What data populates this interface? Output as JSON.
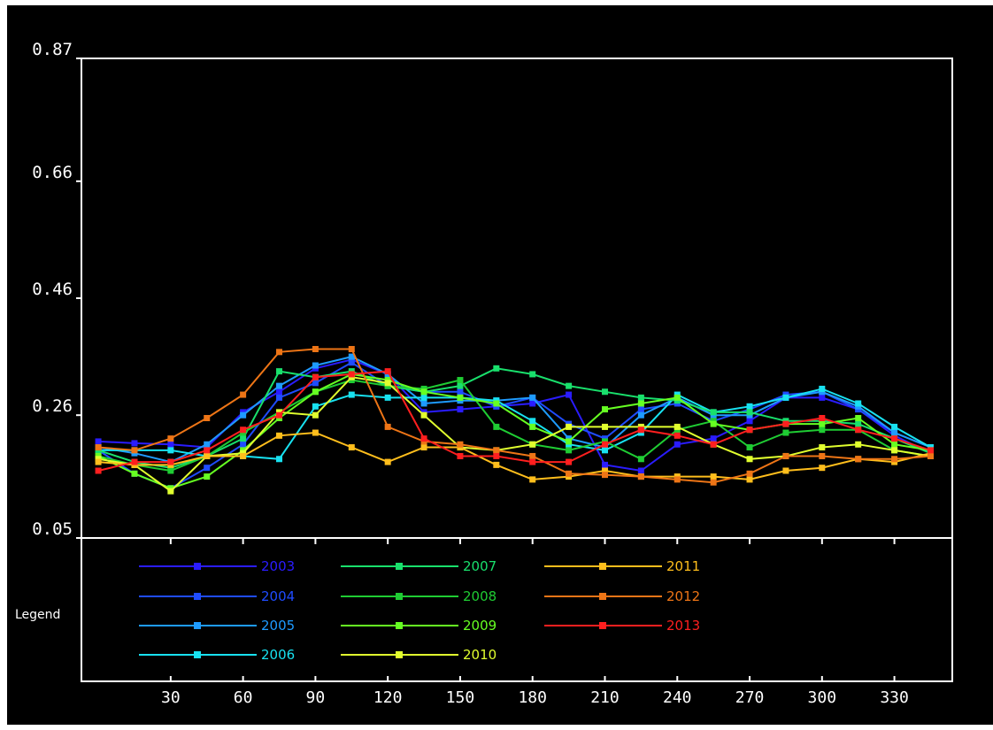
{
  "chart_data": {
    "type": "line",
    "title": "",
    "xlabel": "",
    "ylabel": "",
    "x": [
      0,
      15,
      30,
      45,
      60,
      75,
      90,
      105,
      120,
      135,
      150,
      165,
      180,
      195,
      210,
      225,
      240,
      255,
      270,
      285,
      300,
      315,
      330,
      345
    ],
    "x_ticks": [
      "30",
      "60",
      "90",
      "120",
      "150",
      "180",
      "210",
      "240",
      "270",
      "300",
      "330"
    ],
    "x_tick_values": [
      30,
      60,
      90,
      120,
      150,
      180,
      210,
      240,
      270,
      300,
      330
    ],
    "xlim": [
      -7,
      354
    ],
    "y_ticks": [
      "0.87",
      "0.66",
      "0.46",
      "0.26",
      "0.05"
    ],
    "y_tick_values": [
      0.87,
      0.66,
      0.46,
      0.26,
      0.05
    ],
    "ylim": [
      0.05,
      0.87
    ],
    "legend_title": "Legend",
    "legend_position": "bottom",
    "series": [
      {
        "name": "2003",
        "color": "#2a1cff",
        "values": [
          0.215,
          0.212,
          0.21,
          0.205,
          0.265,
          0.3,
          0.34,
          0.355,
          0.33,
          0.265,
          0.27,
          0.275,
          0.28,
          0.295,
          0.175,
          0.165,
          0.21,
          0.22,
          0.25,
          0.29,
          0.29,
          0.27,
          0.225,
          0.195
        ]
      },
      {
        "name": "2004",
        "color": "#1f4cff",
        "values": [
          0.2,
          0.16,
          0.135,
          0.17,
          0.21,
          0.29,
          0.315,
          0.35,
          0.31,
          0.3,
          0.3,
          0.275,
          0.29,
          0.245,
          0.22,
          0.27,
          0.28,
          0.25,
          0.27,
          0.295,
          0.3,
          0.27,
          0.23,
          0.205
        ]
      },
      {
        "name": "2005",
        "color": "#1e9bff",
        "values": [
          0.205,
          0.195,
          0.18,
          0.21,
          0.26,
          0.31,
          0.345,
          0.36,
          0.33,
          0.28,
          0.285,
          0.285,
          0.29,
          0.22,
          0.205,
          0.26,
          0.29,
          0.26,
          0.26,
          0.29,
          0.3,
          0.275,
          0.23,
          0.205
        ]
      },
      {
        "name": "2006",
        "color": "#18e1f0",
        "values": [
          0.2,
          0.2,
          0.2,
          0.19,
          0.19,
          0.185,
          0.275,
          0.295,
          0.29,
          0.29,
          0.29,
          0.285,
          0.25,
          0.21,
          0.2,
          0.23,
          0.295,
          0.265,
          0.275,
          0.29,
          0.305,
          0.28,
          0.24,
          0.205
        ]
      },
      {
        "name": "2007",
        "color": "#19e06c",
        "values": [
          0.2,
          0.18,
          0.17,
          0.19,
          0.22,
          0.335,
          0.325,
          0.335,
          0.31,
          0.3,
          0.31,
          0.34,
          0.33,
          0.31,
          0.3,
          0.29,
          0.285,
          0.265,
          0.265,
          0.25,
          0.25,
          0.245,
          0.22,
          0.195
        ]
      },
      {
        "name": "2008",
        "color": "#1fcc33",
        "values": [
          0.19,
          0.175,
          0.165,
          0.19,
          0.23,
          0.265,
          0.3,
          0.32,
          0.31,
          0.305,
          0.32,
          0.24,
          0.21,
          0.2,
          0.215,
          0.185,
          0.235,
          0.25,
          0.205,
          0.23,
          0.235,
          0.235,
          0.2,
          0.19
        ]
      },
      {
        "name": "2009",
        "color": "#66ff22",
        "values": [
          0.19,
          0.16,
          0.135,
          0.155,
          0.2,
          0.255,
          0.3,
          0.33,
          0.32,
          0.3,
          0.29,
          0.28,
          0.24,
          0.215,
          0.27,
          0.28,
          0.29,
          0.245,
          0.235,
          0.245,
          0.245,
          0.255,
          0.21,
          0.2
        ]
      },
      {
        "name": "2010",
        "color": "#e1ff2e",
        "values": [
          0.185,
          0.175,
          0.13,
          0.19,
          0.195,
          0.265,
          0.26,
          0.325,
          0.315,
          0.26,
          0.205,
          0.2,
          0.21,
          0.24,
          0.24,
          0.24,
          0.24,
          0.21,
          0.185,
          0.19,
          0.205,
          0.21,
          0.2,
          0.19
        ]
      },
      {
        "name": "2011",
        "color": "#ffbe1c",
        "values": [
          0.18,
          0.175,
          0.175,
          0.19,
          0.19,
          0.225,
          0.23,
          0.205,
          0.18,
          0.205,
          0.205,
          0.175,
          0.15,
          0.155,
          0.165,
          0.155,
          0.155,
          0.155,
          0.15,
          0.165,
          0.17,
          0.185,
          0.18,
          0.195
        ]
      },
      {
        "name": "2012",
        "color": "#ee7516",
        "values": [
          0.205,
          0.2,
          0.22,
          0.255,
          0.295,
          0.368,
          0.373,
          0.373,
          0.24,
          0.215,
          0.21,
          0.2,
          0.19,
          0.16,
          0.158,
          0.155,
          0.15,
          0.145,
          0.16,
          0.19,
          0.19,
          0.185,
          0.185,
          0.19
        ]
      },
      {
        "name": "2013",
        "color": "#ff1f1f",
        "values": [
          0.165,
          0.18,
          0.18,
          0.2,
          0.235,
          0.26,
          0.325,
          0.33,
          0.335,
          0.22,
          0.19,
          0.19,
          0.18,
          0.18,
          0.21,
          0.235,
          0.225,
          0.21,
          0.235,
          0.245,
          0.255,
          0.235,
          0.22,
          0.2
        ]
      }
    ]
  }
}
